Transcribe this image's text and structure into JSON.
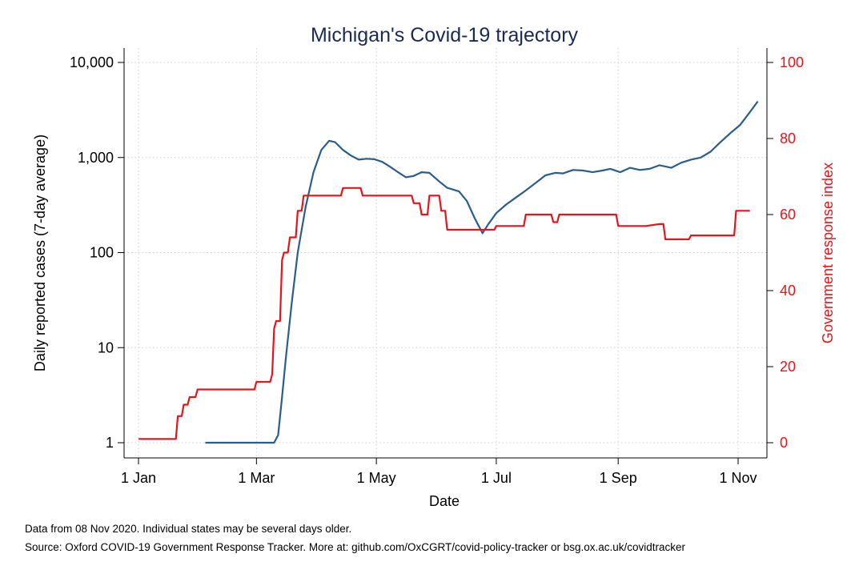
{
  "chart_data": {
    "type": "line",
    "title": "Michigan's Covid-19 trajectory",
    "xlabel": "Date",
    "ylabel_left": "Daily reported cases (7-day average)",
    "ylabel_right": "Government response index",
    "x_range": [
      "2020-01-01",
      "2020-11-08"
    ],
    "x_ticks": [
      {
        "date": "2020-01-01",
        "label": "1 Jan"
      },
      {
        "date": "2020-03-01",
        "label": "1 Mar"
      },
      {
        "date": "2020-05-01",
        "label": "1 May"
      },
      {
        "date": "2020-07-01",
        "label": "1 Jul"
      },
      {
        "date": "2020-09-01",
        "label": "1 Sep"
      },
      {
        "date": "2020-11-01",
        "label": "1 Nov"
      }
    ],
    "y_left": {
      "scale": "log",
      "range": [
        1,
        10000
      ],
      "ticks": [
        {
          "v": 1,
          "label": "1"
        },
        {
          "v": 10,
          "label": "10"
        },
        {
          "v": 100,
          "label": "100"
        },
        {
          "v": 1000,
          "label": "1,000"
        },
        {
          "v": 10000,
          "label": "10,000"
        }
      ]
    },
    "y_right": {
      "scale": "linear",
      "range": [
        0,
        100
      ],
      "ticks": [
        {
          "v": 0,
          "label": "0"
        },
        {
          "v": 20,
          "label": "20"
        },
        {
          "v": 40,
          "label": "40"
        },
        {
          "v": 60,
          "label": "60"
        },
        {
          "v": 80,
          "label": "80"
        },
        {
          "v": 100,
          "label": "100"
        }
      ]
    },
    "grid": true,
    "series": [
      {
        "axis": "left",
        "color": "#2b5d8c",
        "points": [
          [
            "2020-02-04",
            1
          ],
          [
            "2020-03-10",
            1
          ],
          [
            "2020-03-12",
            1.2
          ],
          [
            "2020-03-14",
            3
          ],
          [
            "2020-03-16",
            8
          ],
          [
            "2020-03-19",
            30
          ],
          [
            "2020-03-22",
            100
          ],
          [
            "2020-03-26",
            300
          ],
          [
            "2020-03-30",
            700
          ],
          [
            "2020-04-03",
            1200
          ],
          [
            "2020-04-07",
            1500
          ],
          [
            "2020-04-10",
            1450
          ],
          [
            "2020-04-14",
            1200
          ],
          [
            "2020-04-18",
            1050
          ],
          [
            "2020-04-22",
            950
          ],
          [
            "2020-04-26",
            970
          ],
          [
            "2020-04-30",
            960
          ],
          [
            "2020-05-04",
            900
          ],
          [
            "2020-05-08",
            800
          ],
          [
            "2020-05-12",
            700
          ],
          [
            "2020-05-16",
            620
          ],
          [
            "2020-05-20",
            640
          ],
          [
            "2020-05-24",
            700
          ],
          [
            "2020-05-28",
            690
          ],
          [
            "2020-06-02",
            560
          ],
          [
            "2020-06-06",
            480
          ],
          [
            "2020-06-12",
            440
          ],
          [
            "2020-06-16",
            350
          ],
          [
            "2020-06-20",
            230
          ],
          [
            "2020-06-24",
            160
          ],
          [
            "2020-06-27",
            200
          ],
          [
            "2020-07-01",
            260
          ],
          [
            "2020-07-06",
            320
          ],
          [
            "2020-07-11",
            380
          ],
          [
            "2020-07-16",
            450
          ],
          [
            "2020-07-21",
            540
          ],
          [
            "2020-07-26",
            650
          ],
          [
            "2020-07-31",
            690
          ],
          [
            "2020-08-04",
            680
          ],
          [
            "2020-08-09",
            740
          ],
          [
            "2020-08-14",
            730
          ],
          [
            "2020-08-19",
            700
          ],
          [
            "2020-08-24",
            730
          ],
          [
            "2020-08-28",
            760
          ],
          [
            "2020-09-02",
            700
          ],
          [
            "2020-09-07",
            780
          ],
          [
            "2020-09-12",
            740
          ],
          [
            "2020-09-17",
            760
          ],
          [
            "2020-09-22",
            830
          ],
          [
            "2020-09-28",
            780
          ],
          [
            "2020-10-03",
            880
          ],
          [
            "2020-10-08",
            950
          ],
          [
            "2020-10-13",
            1000
          ],
          [
            "2020-10-18",
            1150
          ],
          [
            "2020-10-23",
            1450
          ],
          [
            "2020-10-28",
            1800
          ],
          [
            "2020-11-02",
            2200
          ],
          [
            "2020-11-07",
            3000
          ],
          [
            "2020-11-11",
            3900
          ]
        ]
      },
      {
        "axis": "right",
        "color": "#e8141b",
        "points": [
          [
            "2020-01-01",
            1
          ],
          [
            "2020-01-20",
            1
          ],
          [
            "2020-01-21",
            7
          ],
          [
            "2020-01-23",
            7
          ],
          [
            "2020-01-24",
            10
          ],
          [
            "2020-01-26",
            10
          ],
          [
            "2020-01-27",
            12
          ],
          [
            "2020-01-30",
            12
          ],
          [
            "2020-01-31",
            14
          ],
          [
            "2020-02-29",
            14
          ],
          [
            "2020-03-01",
            16
          ],
          [
            "2020-03-08",
            16
          ],
          [
            "2020-03-09",
            18
          ],
          [
            "2020-03-10",
            30
          ],
          [
            "2020-03-11",
            32
          ],
          [
            "2020-03-13",
            32
          ],
          [
            "2020-03-14",
            48
          ],
          [
            "2020-03-15",
            50
          ],
          [
            "2020-03-17",
            50
          ],
          [
            "2020-03-18",
            54
          ],
          [
            "2020-03-21",
            54
          ],
          [
            "2020-03-22",
            61
          ],
          [
            "2020-03-24",
            61
          ],
          [
            "2020-03-25",
            65
          ],
          [
            "2020-04-13",
            65
          ],
          [
            "2020-04-14",
            67
          ],
          [
            "2020-04-23",
            67
          ],
          [
            "2020-04-24",
            65
          ],
          [
            "2020-05-19",
            65
          ],
          [
            "2020-05-20",
            63
          ],
          [
            "2020-05-23",
            63
          ],
          [
            "2020-05-24",
            60
          ],
          [
            "2020-05-27",
            60
          ],
          [
            "2020-05-28",
            65
          ],
          [
            "2020-06-02",
            65
          ],
          [
            "2020-06-03",
            61
          ],
          [
            "2020-06-05",
            61
          ],
          [
            "2020-06-06",
            56
          ],
          [
            "2020-06-30",
            56
          ],
          [
            "2020-07-01",
            57
          ],
          [
            "2020-07-15",
            57
          ],
          [
            "2020-07-16",
            60
          ],
          [
            "2020-07-29",
            60
          ],
          [
            "2020-07-30",
            58
          ],
          [
            "2020-08-01",
            58
          ],
          [
            "2020-08-02",
            60
          ],
          [
            "2020-08-31",
            60
          ],
          [
            "2020-09-01",
            57
          ],
          [
            "2020-09-02",
            57
          ],
          [
            "2020-09-15",
            57
          ],
          [
            "2020-09-22",
            57.5
          ],
          [
            "2020-09-24",
            57.5
          ],
          [
            "2020-09-25",
            53.5
          ],
          [
            "2020-10-07",
            53.5
          ],
          [
            "2020-10-08",
            54.5
          ],
          [
            "2020-10-30",
            54.5
          ],
          [
            "2020-10-31",
            61
          ],
          [
            "2020-11-07",
            61
          ]
        ]
      }
    ]
  },
  "notes": {
    "line1": "Data from 08 Nov 2020. Individual states may be several days older.",
    "line2": "Source: Oxford COVID-19 Government Response Tracker. More at: github.com/OxCGRT/covid-policy-tracker or bsg.ox.ac.uk/covidtracker"
  }
}
